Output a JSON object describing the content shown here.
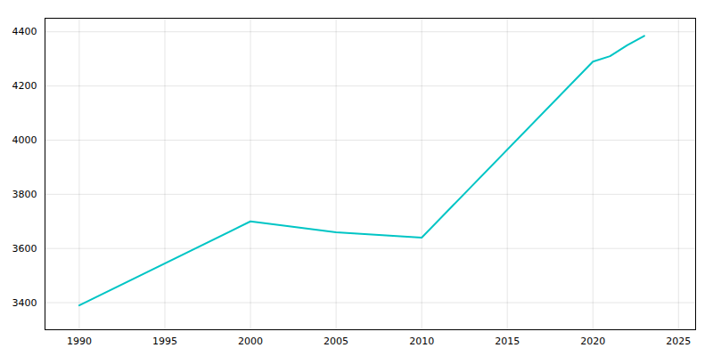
{
  "chart_data": {
    "type": "line",
    "x": [
      1990,
      2000,
      2005,
      2010,
      2020,
      2021,
      2022,
      2023
    ],
    "values": [
      3390,
      3700,
      3660,
      3640,
      4290,
      4310,
      4350,
      4385
    ],
    "color": "#00C5C5",
    "xlim": [
      1988,
      2026
    ],
    "ylim": [
      3300,
      4450
    ],
    "xticks": [
      1990,
      1995,
      2000,
      2005,
      2010,
      2015,
      2020,
      2025
    ],
    "yticks": [
      3400,
      3600,
      3800,
      4000,
      4200,
      4400
    ],
    "grid": true
  }
}
